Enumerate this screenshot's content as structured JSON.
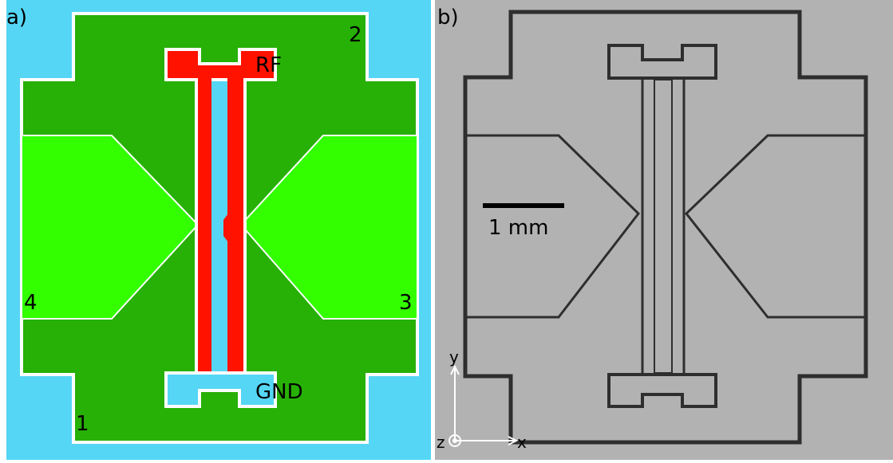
{
  "panel_a": {
    "label": "a)",
    "pad_labels": [
      "RF",
      "GND"
    ],
    "port_labels": [
      "1",
      "2",
      "3",
      "4"
    ]
  },
  "panel_b": {
    "label": "b)",
    "scale_bar": "1 mm",
    "axes": [
      "x",
      "y",
      "z"
    ]
  }
}
